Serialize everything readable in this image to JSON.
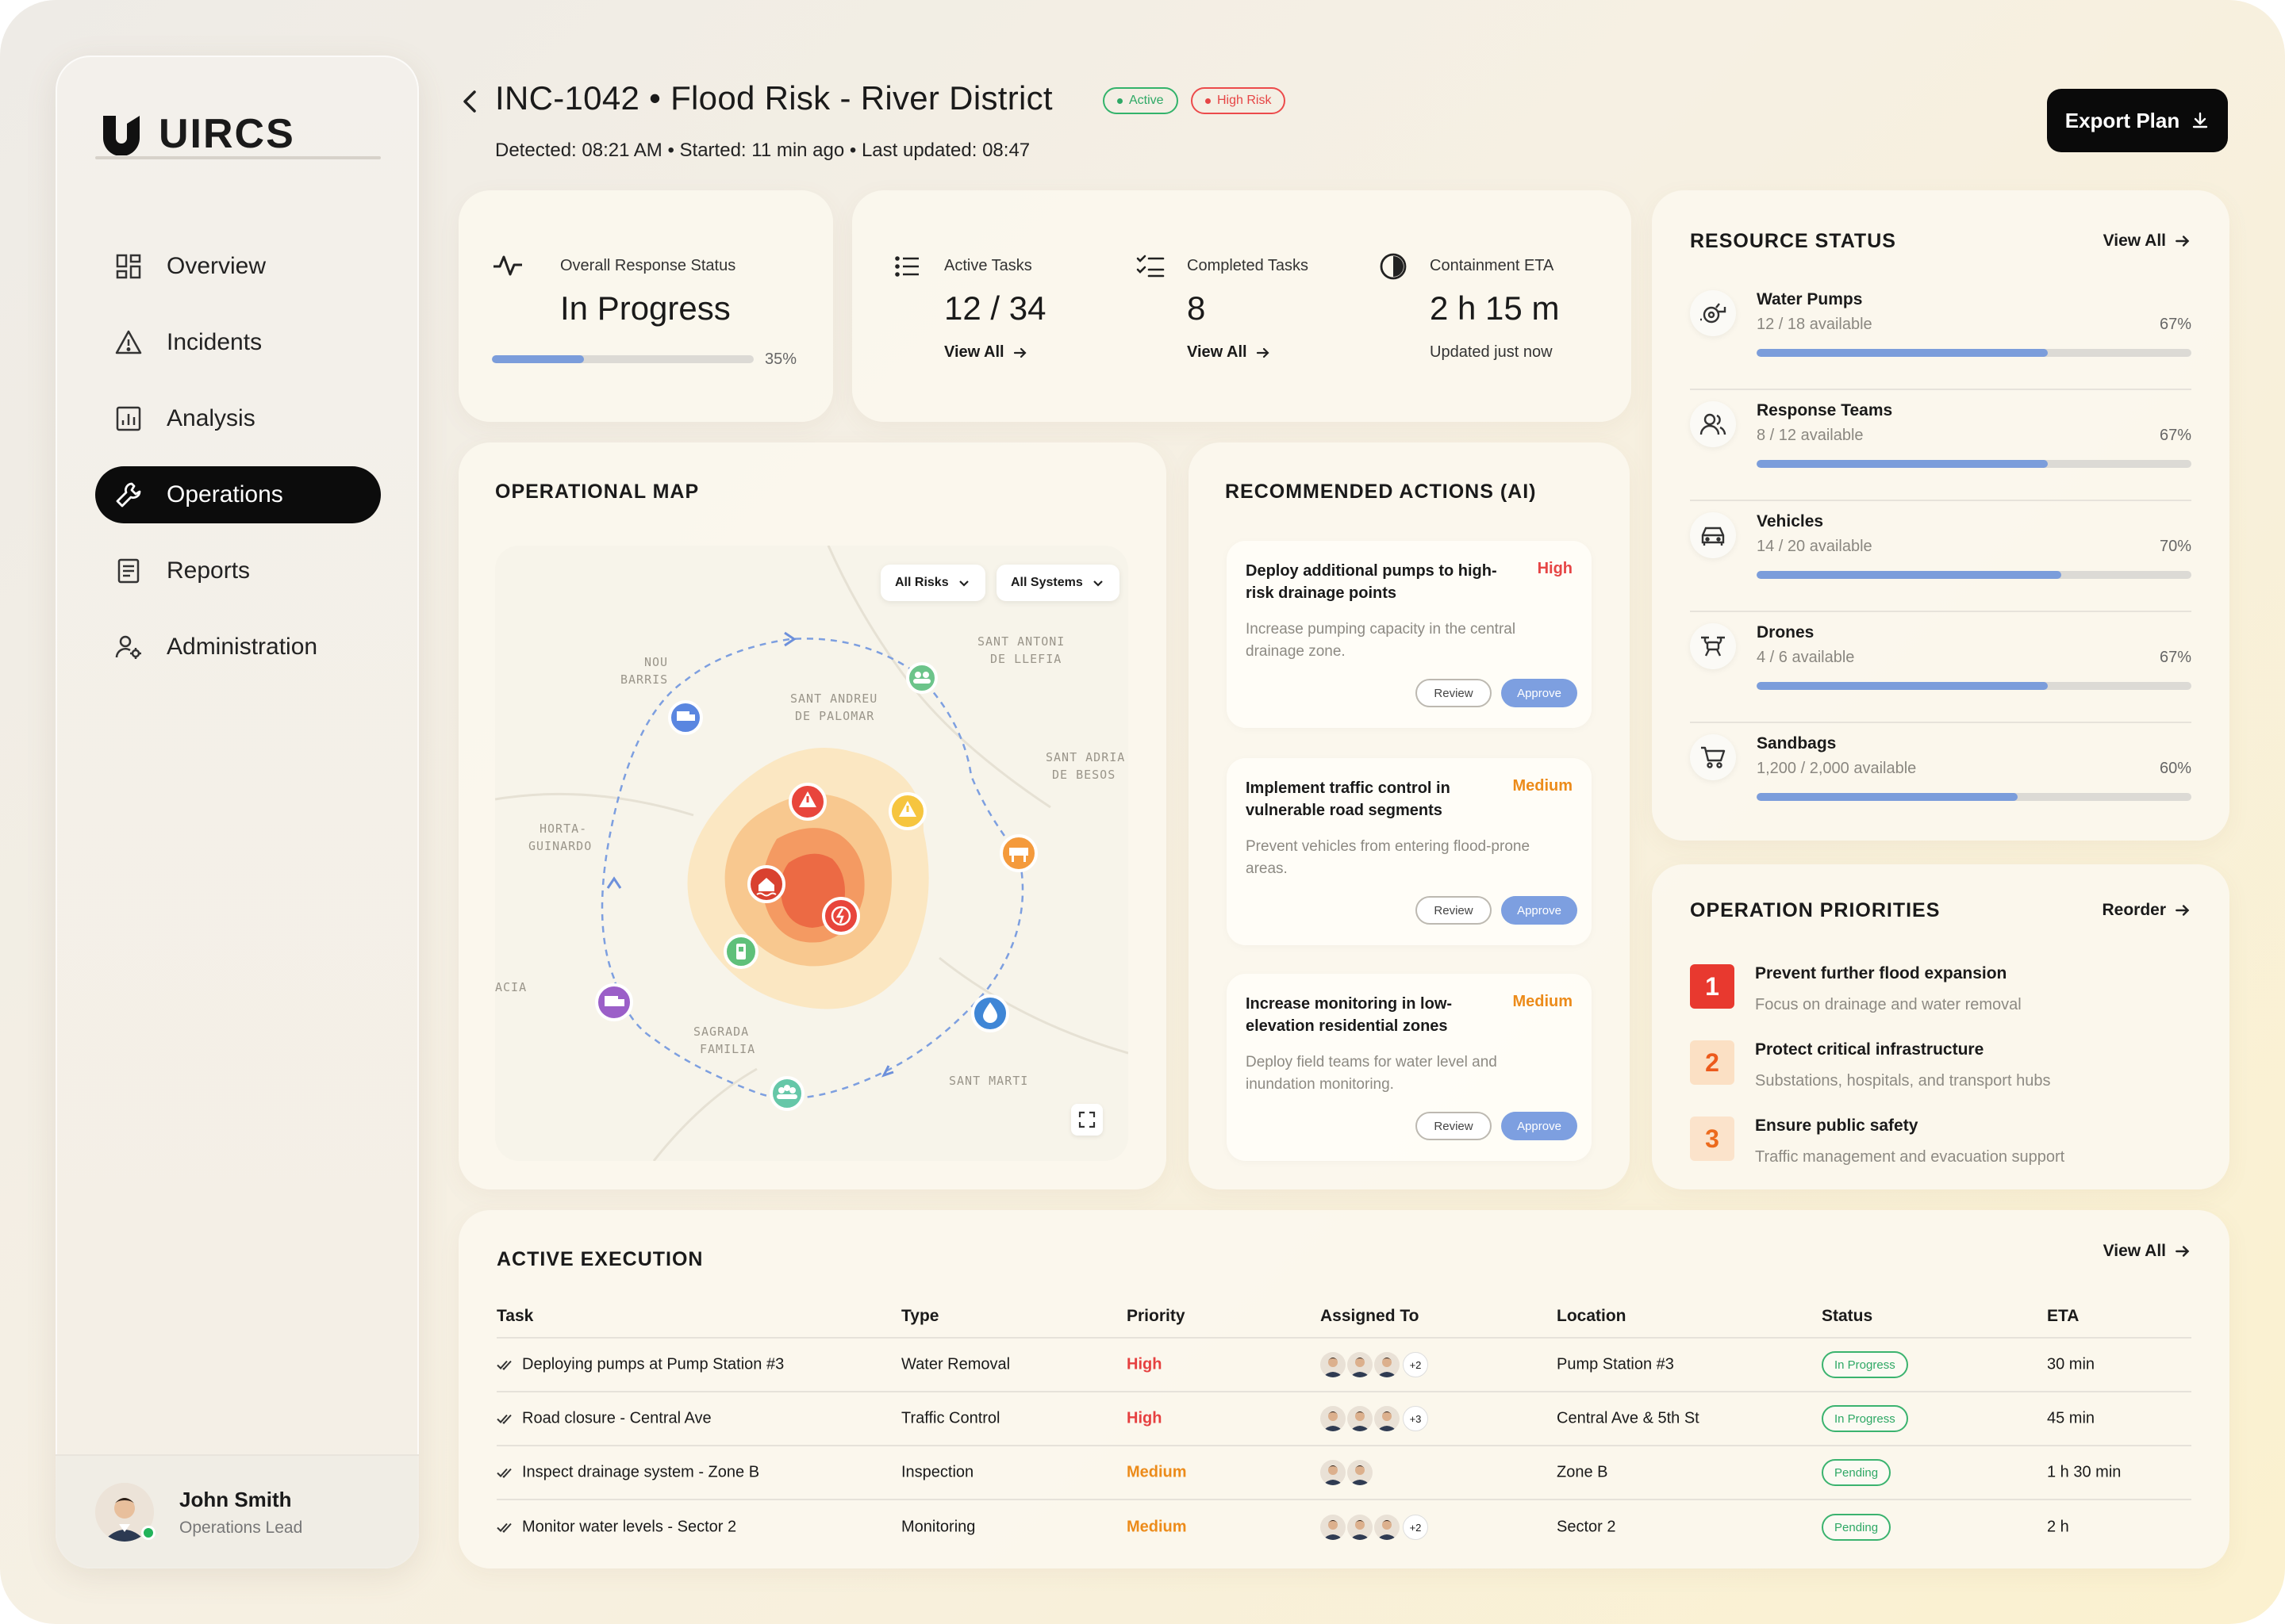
{
  "app": {
    "name": "UIRCS"
  },
  "nav": {
    "items": [
      {
        "label": "Overview"
      },
      {
        "label": "Incidents"
      },
      {
        "label": "Analysis"
      },
      {
        "label": "Operations",
        "active": true
      },
      {
        "label": "Reports"
      },
      {
        "label": "Administration"
      }
    ]
  },
  "user": {
    "name": "John Smith",
    "role": "Operations Lead"
  },
  "header": {
    "title": "INC-1042 • Flood Risk - River District",
    "badge_active": "Active",
    "badge_risk": "High Risk",
    "subtitle": "Detected: 08:21 AM • Started: 11 min ago • Last updated: 08:47",
    "export_label": "Export Plan"
  },
  "status": {
    "label": "Overall Response Status",
    "value": "In Progress",
    "progress_label": "35%",
    "progress": 0.35
  },
  "tasks": {
    "active": {
      "label": "Active Tasks",
      "value": "12 / 34",
      "link": "View All"
    },
    "completed": {
      "label": "Completed Tasks",
      "value": "8",
      "link": "View All"
    },
    "eta": {
      "label": "Containment ETA",
      "value": "2 h 15 m",
      "note": "Updated just now"
    }
  },
  "resources": {
    "title": "RESOURCE STATUS",
    "link": "View All",
    "items": [
      {
        "name": "Water Pumps",
        "available": "12 / 18 available",
        "pct": "67%",
        "fill": 0.67
      },
      {
        "name": "Response Teams",
        "available": "8 / 12 available",
        "pct": "67%",
        "fill": 0.67
      },
      {
        "name": "Vehicles",
        "available": "14 / 20 available",
        "pct": "70%",
        "fill": 0.7
      },
      {
        "name": "Drones",
        "available": "4 / 6 available",
        "pct": "67%",
        "fill": 0.67
      },
      {
        "name": "Sandbags",
        "available": "1,200 / 2,000 available",
        "pct": "60%",
        "fill": 0.6
      }
    ]
  },
  "map": {
    "title": "OPERATIONAL MAP",
    "filter_risks": "All Risks",
    "filter_systems": "All Systems",
    "labels": {
      "nou_barris_1": "NOU",
      "nou_barris_2": "BARRIS",
      "sant_antoni_1": "SANT ANTONI",
      "sant_antoni_2": "DE LLEFIA",
      "sant_andreu_1": "SANT ANDREU",
      "sant_andreu_2": "DE PALOMAR",
      "sant_adria_1": "SANT ADRIA",
      "sant_adria_2": "DE BESOS",
      "horta_1": "HORTA-",
      "horta_2": "GUINARDO",
      "acia": "ACIA",
      "sagrada_1": "SAGRADA",
      "sagrada_2": "FAMILIA",
      "sant_marti": "SANT MARTI"
    }
  },
  "ai": {
    "title": "RECOMMENDED ACTIONS (AI)",
    "review_label": "Review",
    "approve_label": "Approve",
    "actions": [
      {
        "title": "Deploy additional pumps to high-risk drainage points",
        "priority": "High",
        "desc": "Increase pumping capacity in the central drainage zone."
      },
      {
        "title": "Implement traffic control in vulnerable road segments",
        "priority": "Medium",
        "desc": "Prevent vehicles from entering flood-prone areas."
      },
      {
        "title": "Increase monitoring in low-elevation residential zones",
        "priority": "Medium",
        "desc": "Deploy field teams for water level and inundation monitoring."
      }
    ]
  },
  "priorities": {
    "title": "OPERATION PRIORITIES",
    "link": "Reorder",
    "items": [
      {
        "num": "1",
        "title": "Prevent further flood expansion",
        "desc": "Focus on drainage and water removal"
      },
      {
        "num": "2",
        "title": "Protect critical infrastructure",
        "desc": "Substations, hospitals, and transport hubs"
      },
      {
        "num": "3",
        "title": "Ensure public safety",
        "desc": "Traffic management and evacuation support"
      }
    ]
  },
  "execution": {
    "title": "ACTIVE EXECUTION",
    "link": "View All",
    "columns": [
      "Task",
      "Type",
      "Priority",
      "Assigned To",
      "Location",
      "Status",
      "ETA"
    ],
    "rows": [
      {
        "task": "Deploying pumps at Pump Station #3",
        "type": "Water Removal",
        "priority": "High",
        "more": "+2",
        "location": "Pump Station #3",
        "status": "In Progress",
        "eta": "30 min"
      },
      {
        "task": "Road closure - Central Ave",
        "type": "Traffic Control",
        "priority": "High",
        "more": "+3",
        "location": "Central Ave & 5th St",
        "status": "In Progress",
        "eta": "45 min"
      },
      {
        "task": "Inspect drainage system - Zone B",
        "type": "Inspection",
        "priority": "Medium",
        "more": "",
        "location": "Zone B",
        "status": "Pending",
        "eta": "1 h 30 min"
      },
      {
        "task": "Monitor water levels - Sector 2",
        "type": "Monitoring",
        "priority": "Medium",
        "more": "+2",
        "location": "Sector 2",
        "status": "Pending",
        "eta": "2 h"
      }
    ]
  },
  "colors": {
    "accent_blue": "#7b9ddb",
    "high": "#e64040",
    "medium": "#ec8b1a",
    "status_green": "#2ea865"
  }
}
